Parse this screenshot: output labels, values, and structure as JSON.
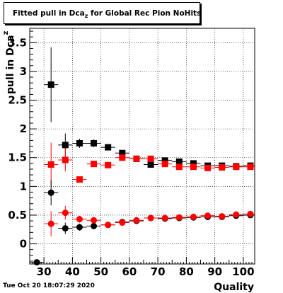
{
  "chart_data": {
    "type": "scatter",
    "title_main": "Fitted pull in Dca",
    "title_sub": "z",
    "title_rest": " for Global Rec Pion NoHits",
    "xlabel": "Quality",
    "ylabel_main": "pull in Dca",
    "ylabel_sub": "z",
    "xlim": [
      25,
      104
    ],
    "ylim": [
      -0.35,
      3.75
    ],
    "x_ticks": [
      30,
      40,
      50,
      60,
      70,
      80,
      90,
      100
    ],
    "x_tick_labels": [
      "30",
      "40",
      "50",
      "60",
      "70",
      "80",
      "90",
      "100"
    ],
    "y_ticks": [
      0,
      0.5,
      1,
      1.5,
      2,
      2.5,
      3,
      3.5
    ],
    "y_tick_labels": [
      "0",
      "0.5",
      "1",
      "1.5",
      "2",
      "2.5",
      "3",
      "3.5"
    ],
    "grid": true,
    "series": [
      {
        "color": "#000000",
        "marker": "square",
        "x": [
          32.5,
          37.5,
          42.5,
          47.5,
          52.5,
          57.5,
          62.5,
          67.5,
          72.5,
          77.5,
          82.5,
          87.5,
          92.5,
          97.5,
          102.5
        ],
        "y": [
          2.77,
          1.72,
          1.75,
          1.75,
          1.68,
          1.58,
          1.48,
          1.38,
          1.45,
          1.43,
          1.4,
          1.36,
          1.36,
          1.35,
          1.36
        ],
        "yerr": [
          0.65,
          0.2,
          0.08,
          0.07,
          0.05,
          0.04,
          0.03,
          0.03,
          0.02,
          0.02,
          0.02,
          0.02,
          0.02,
          0.02,
          0.02
        ]
      },
      {
        "color": "#ff0000",
        "marker": "square",
        "x": [
          32.5,
          37.5,
          42.5,
          47.5,
          52.5,
          57.5,
          62.5,
          67.5,
          72.5,
          77.5,
          82.5,
          87.5,
          92.5,
          97.5,
          102.5
        ],
        "y": [
          1.38,
          1.46,
          1.12,
          1.39,
          1.37,
          1.5,
          1.48,
          1.48,
          1.39,
          1.34,
          1.34,
          1.32,
          1.33,
          1.34,
          1.34
        ],
        "yerr": [
          0.38,
          0.2,
          0.05,
          0.05,
          0.04,
          0.04,
          0.03,
          0.03,
          0.03,
          0.03,
          0.02,
          0.02,
          0.02,
          0.02,
          0.02
        ]
      },
      {
        "color": "#000000",
        "marker": "circle",
        "x": [
          27.5,
          32.5,
          37.5,
          42.5,
          47.5,
          52.5,
          57.5,
          62.5,
          67.5,
          72.5,
          77.5,
          82.5,
          87.5,
          92.5,
          97.5,
          102.5
        ],
        "y": [
          -0.32,
          0.89,
          0.27,
          0.29,
          0.31,
          0.33,
          0.38,
          0.4,
          0.45,
          0.44,
          0.45,
          0.46,
          0.47,
          0.47,
          0.49,
          0.5
        ],
        "yerr": [
          0.05,
          0.22,
          0.1,
          0.06,
          0.05,
          0.04,
          0.03,
          0.03,
          0.02,
          0.02,
          0.02,
          0.02,
          0.02,
          0.02,
          0.02,
          0.02
        ]
      },
      {
        "color": "#ff0000",
        "marker": "circle",
        "x": [
          32.5,
          37.5,
          42.5,
          47.5,
          52.5,
          57.5,
          62.5,
          67.5,
          72.5,
          77.5,
          82.5,
          87.5,
          92.5,
          97.5,
          102.5
        ],
        "y": [
          0.35,
          0.54,
          0.43,
          0.41,
          0.33,
          0.37,
          0.41,
          0.45,
          0.45,
          0.46,
          0.47,
          0.49,
          0.48,
          0.51,
          0.52
        ],
        "yerr": [
          0.22,
          0.12,
          0.06,
          0.05,
          0.04,
          0.03,
          0.03,
          0.03,
          0.02,
          0.02,
          0.02,
          0.02,
          0.02,
          0.02,
          0.02
        ]
      }
    ],
    "timestamp": "Tue Oct 20 18:07:29 2020"
  }
}
